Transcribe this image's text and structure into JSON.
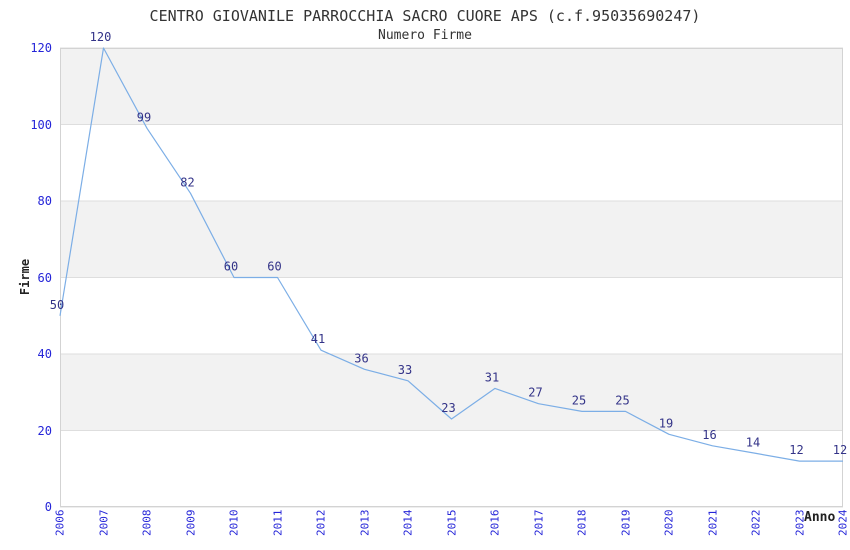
{
  "chart_data": {
    "type": "line",
    "title": "CENTRO GIOVANILE PARROCCHIA SACRO CUORE APS (c.f.95035690247)",
    "subtitle": "Numero Firme",
    "xlabel": "Anno",
    "ylabel": "Firme",
    "x": [
      2006,
      2007,
      2008,
      2009,
      2010,
      2011,
      2012,
      2013,
      2014,
      2015,
      2016,
      2017,
      2018,
      2019,
      2020,
      2021,
      2022,
      2023,
      2024
    ],
    "values": [
      50,
      120,
      99,
      82,
      60,
      60,
      41,
      36,
      33,
      23,
      31,
      27,
      25,
      25,
      19,
      16,
      14,
      12,
      12
    ],
    "ylim": [
      0,
      120
    ],
    "y_ticks": [
      0,
      20,
      40,
      60,
      80,
      100,
      120
    ],
    "grid": "horizontal alternating bands every 20 units",
    "legend": "none",
    "data_labels_shown": true,
    "colors": {
      "line": "#7caee6",
      "band_gray": "#f2f2f2",
      "band_white": "#ffffff",
      "gridline": "#dedede",
      "plot_border": "#d3d3d3",
      "axis_tick_text": "#2525d8",
      "data_label_text": "#333388",
      "title_text": "#333333",
      "background": "#ffffff"
    }
  }
}
